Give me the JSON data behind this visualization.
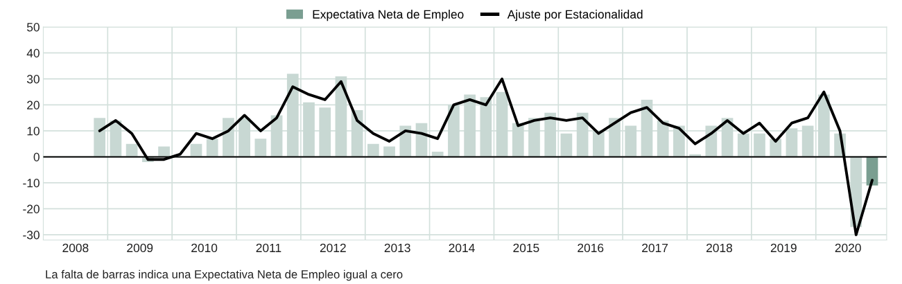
{
  "chart_data": {
    "type": "bar",
    "x": [
      2008.875,
      2009.125,
      2009.375,
      2009.625,
      2009.875,
      2010.125,
      2010.375,
      2010.625,
      2010.875,
      2011.125,
      2011.375,
      2011.625,
      2011.875,
      2012.125,
      2012.375,
      2012.625,
      2012.875,
      2013.125,
      2013.375,
      2013.625,
      2013.875,
      2014.125,
      2014.375,
      2014.625,
      2014.875,
      2015.125,
      2015.375,
      2015.625,
      2015.875,
      2016.125,
      2016.375,
      2016.625,
      2016.875,
      2017.125,
      2017.375,
      2017.625,
      2017.875,
      2018.125,
      2018.375,
      2018.625,
      2018.875,
      2019.125,
      2019.375,
      2019.625,
      2019.875,
      2020.125,
      2020.375,
      2020.625,
      2020.875
    ],
    "series": [
      {
        "color": "#c8d8d3",
        "values": [
          15,
          14,
          5,
          -2,
          4,
          0,
          5,
          7,
          15,
          15,
          7,
          16,
          32,
          21,
          19,
          31,
          18,
          5,
          4,
          12,
          13,
          2,
          20,
          24,
          23,
          25,
          13,
          15,
          17,
          9,
          17,
          10,
          15,
          12,
          22,
          14,
          12,
          1,
          12,
          15,
          9,
          9,
          7,
          11,
          12,
          24,
          9,
          -27,
          null
        ]
      },
      {
        "name": "Expectativa Neta de Empleo",
        "color": "#7a9e91",
        "values": [
          null,
          null,
          null,
          null,
          null,
          null,
          null,
          null,
          null,
          null,
          null,
          null,
          null,
          null,
          null,
          null,
          null,
          null,
          null,
          null,
          null,
          null,
          null,
          null,
          null,
          null,
          null,
          null,
          null,
          null,
          null,
          null,
          null,
          null,
          null,
          null,
          null,
          null,
          null,
          null,
          null,
          null,
          null,
          null,
          null,
          null,
          null,
          null,
          -11
        ]
      },
      {
        "name": "Ajuste por Estacionalidad",
        "type": "line",
        "color": "#000000",
        "values": [
          10,
          14,
          9,
          -1,
          -1,
          1,
          9,
          7,
          10,
          16,
          10,
          15,
          27,
          24,
          22,
          29,
          14,
          9,
          6,
          10,
          9,
          7,
          20,
          22,
          20,
          30,
          12,
          14,
          15,
          14,
          15,
          9,
          13,
          17,
          19,
          13,
          11,
          5,
          9,
          14,
          9,
          13,
          6,
          13,
          15,
          25,
          10,
          -30,
          -9
        ]
      }
    ],
    "xlim": [
      2008,
      2021.1
    ],
    "xticks": [
      {
        "value": 2008.5,
        "label": "2008"
      },
      {
        "value": 2009,
        "label": null
      },
      {
        "value": 2009.5,
        "label": "2009"
      },
      {
        "value": 2010,
        "label": null
      },
      {
        "value": 2010.5,
        "label": "2010"
      },
      {
        "value": 2011,
        "label": null
      },
      {
        "value": 2011.5,
        "label": "2011"
      },
      {
        "value": 2012,
        "label": null
      },
      {
        "value": 2012.5,
        "label": "2012"
      },
      {
        "value": 2013,
        "label": null
      },
      {
        "value": 2013.5,
        "label": "2013"
      },
      {
        "value": 2014,
        "label": null
      },
      {
        "value": 2014.5,
        "label": "2014"
      },
      {
        "value": 2015,
        "label": null
      },
      {
        "value": 2015.5,
        "label": "2015"
      },
      {
        "value": 2016,
        "label": null
      },
      {
        "value": 2016.5,
        "label": "2016"
      },
      {
        "value": 2017,
        "label": null
      },
      {
        "value": 2017.5,
        "label": "2017"
      },
      {
        "value": 2018,
        "label": null
      },
      {
        "value": 2018.5,
        "label": "2018"
      },
      {
        "value": 2019,
        "label": null
      },
      {
        "value": 2019.5,
        "label": "2019"
      },
      {
        "value": 2020,
        "label": null
      },
      {
        "value": 2020.5,
        "label": "2020"
      }
    ],
    "ylim": [
      -32,
      50
    ],
    "yticks": [
      -30,
      -20,
      -10,
      0,
      10,
      20,
      30,
      40,
      50
    ],
    "grid": true,
    "legend": "top",
    "line_style": "solid",
    "marker": "none",
    "ref_lines": [
      {
        "axis": "y",
        "value": 0,
        "color": "#000000"
      }
    ],
    "annotations": [
      "La falta de barras indica una Expectativa Neta de Empleo igual a cero"
    ]
  }
}
